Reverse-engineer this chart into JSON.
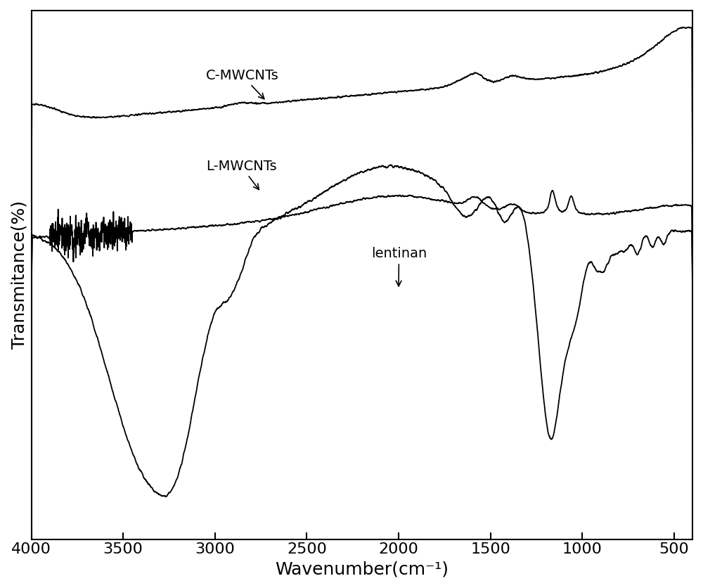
{
  "title": "",
  "xlabel": "Wavenumber(cm⁻¹)",
  "ylabel": "Transmitance(%)",
  "xlim_left": 4000,
  "xlim_right": 400,
  "background_color": "#ffffff",
  "axis_color": "#000000",
  "line_color": "#000000",
  "line_width": 1.3,
  "label_fontsize": 18,
  "tick_fontsize": 16,
  "annotation_fontsize": 14,
  "xticks": [
    4000,
    3500,
    3000,
    2500,
    2000,
    1500,
    1000,
    500
  ]
}
